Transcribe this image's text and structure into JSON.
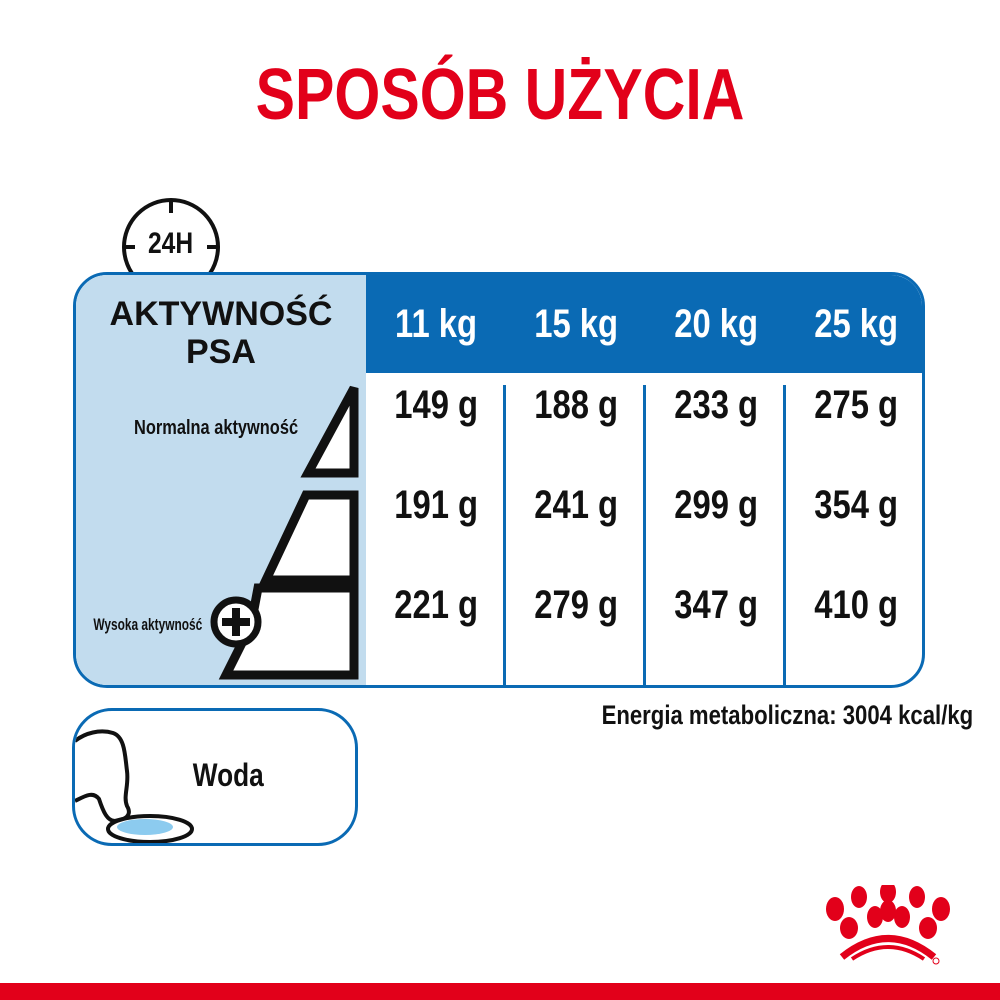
{
  "title": "SPOSÓB UŻYCIA",
  "clock_label": "24H",
  "activity": {
    "title_line1": "AKTYWNOŚĆ",
    "title_line2": "PSA",
    "normal_label": "Normalna aktywność",
    "high_label": "Wysoka aktywność"
  },
  "table": {
    "columns": [
      "11 kg",
      "15 kg",
      "20 kg",
      "25 kg"
    ],
    "rows": [
      [
        "149 g",
        "188 g",
        "233 g",
        "275 g"
      ],
      [
        "191 g",
        "241 g",
        "299 g",
        "354 g"
      ],
      [
        "221 g",
        "279 g",
        "347 g",
        "410 g"
      ]
    ]
  },
  "energy": "Energia metaboliczna: 3004 kcal/kg",
  "water_label": "Woda",
  "logo": "Royal Canin crown",
  "colors": {
    "brand_red": "#e2001a",
    "blue": "#0a6ab4",
    "light_blue": "#c2dcee"
  }
}
